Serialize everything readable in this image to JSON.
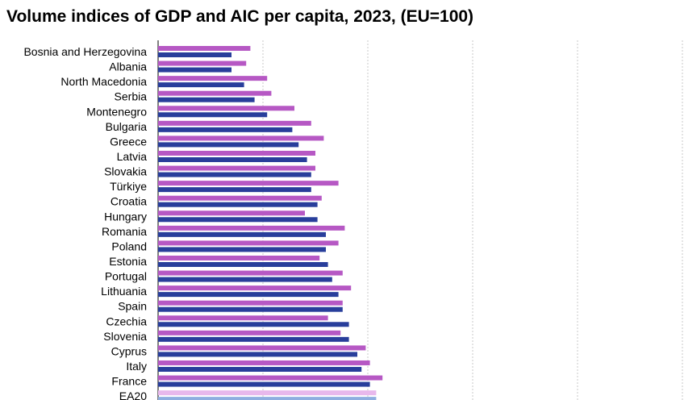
{
  "chart_data": {
    "type": "bar",
    "orientation": "horizontal",
    "title": "Volume indices of GDP and AIC per capita, 2023, (EU=100)",
    "xlabel": "",
    "ylabel": "",
    "xlim": [
      0,
      250
    ],
    "grid": true,
    "legend": "none",
    "categories": [
      "Bosnia and Herzegovina",
      "Albania",
      "North Macedonia",
      "Serbia",
      "Montenegro",
      "Bulgaria",
      "Greece",
      "Latvia",
      "Slovakia",
      "Türkiye",
      "Croatia",
      "Hungary",
      "Romania",
      "Poland",
      "Estonia",
      "Portugal",
      "Lithuania",
      "Spain",
      "Czechia",
      "Slovenia",
      "Cyprus",
      "Italy",
      "France",
      "EA20"
    ],
    "series": [
      {
        "color": "#b658c4",
        "values": [
          44,
          42,
          52,
          54,
          65,
          73,
          79,
          75,
          75,
          86,
          78,
          70,
          89,
          86,
          77,
          88,
          92,
          88,
          81,
          87,
          99,
          101,
          107,
          104
        ]
      },
      {
        "color": "#283e9b",
        "values": [
          35,
          35,
          41,
          46,
          52,
          64,
          67,
          71,
          73,
          73,
          76,
          76,
          80,
          80,
          81,
          83,
          86,
          88,
          91,
          91,
          95,
          97,
          101,
          104
        ]
      }
    ],
    "highlight_colors": {
      "top": "#e8b8ec",
      "bottom": "#8faee0"
    }
  }
}
